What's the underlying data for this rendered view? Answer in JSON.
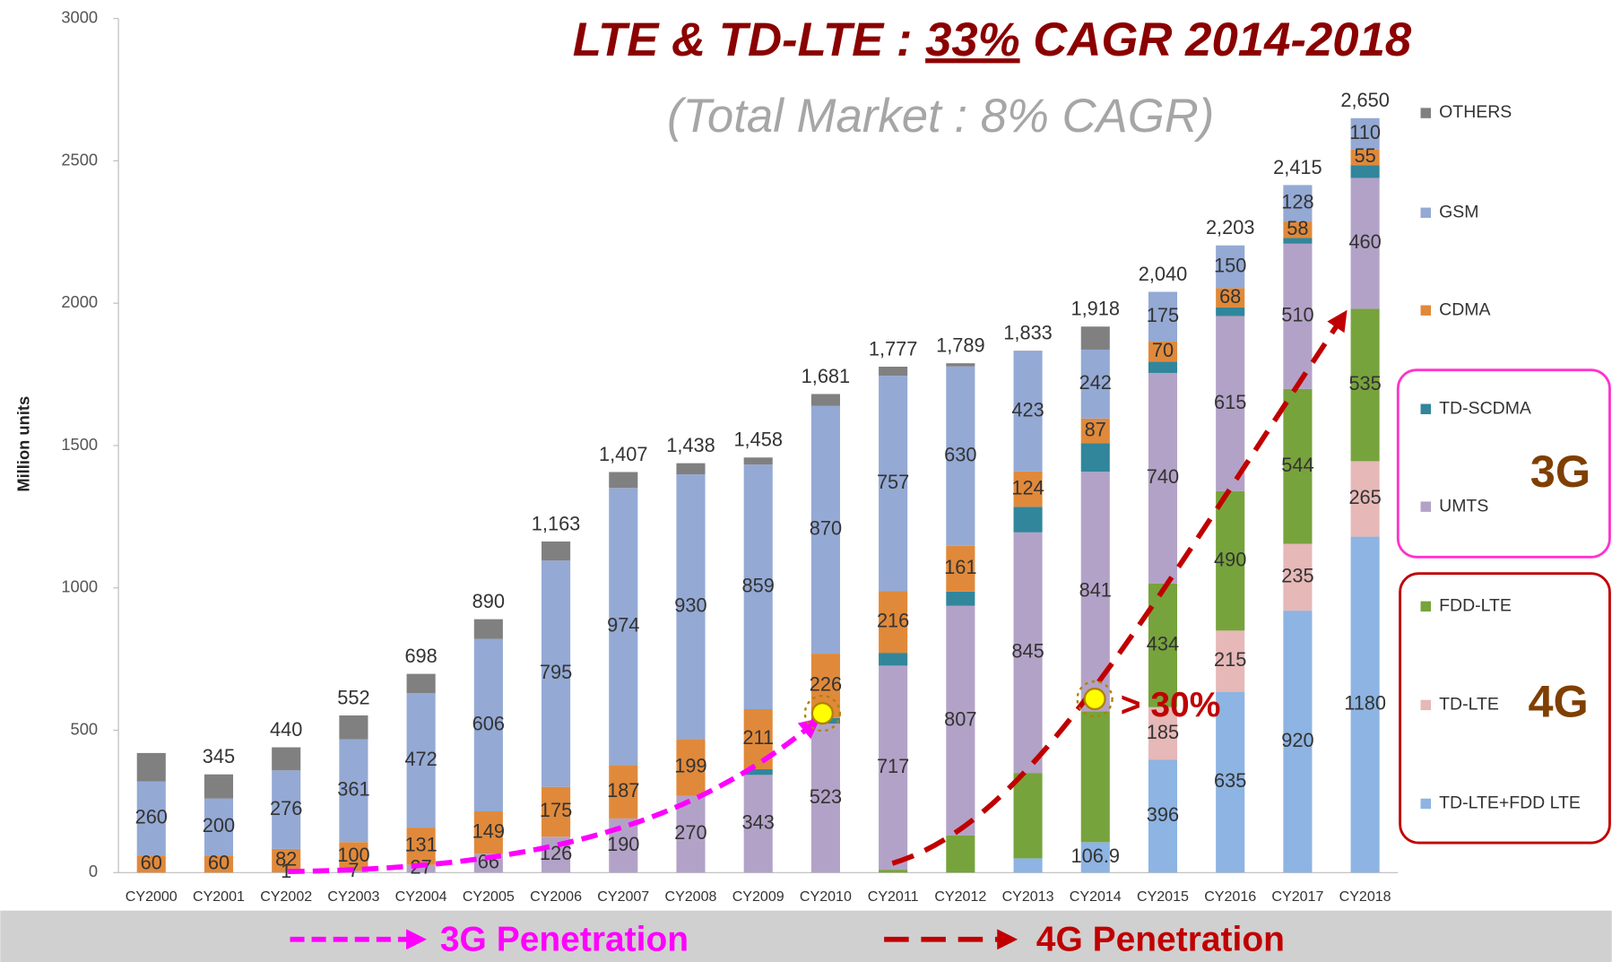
{
  "chart_data": {
    "type": "stacked_bar",
    "title_parts": [
      "LTE & TD-LTE : ",
      "33%",
      " CAGR 2014-2018"
    ],
    "subtitle": "(Total Market : 8% CAGR)",
    "y_label": "Million units",
    "categories": [
      "CY2000",
      "CY2001",
      "CY2002",
      "CY2003",
      "CY2004",
      "CY2005",
      "CY2006",
      "CY2007",
      "CY2008",
      "CY2009",
      "CY2010",
      "CY2011",
      "CY2012",
      "CY2013",
      "CY2014",
      "CY2015",
      "CY2016",
      "CY2017",
      "CY2018"
    ],
    "ylim": [
      0,
      3000
    ],
    "yticks": [
      0,
      500,
      1000,
      1500,
      2000,
      2500,
      3000
    ],
    "series": [
      {
        "name": "TD-LTE+FDD LTE",
        "color": "#8db4e2",
        "values": [
          0,
          0,
          0,
          0,
          0,
          0,
          0,
          0,
          0,
          0,
          0,
          0,
          0,
          50,
          106.9,
          396,
          635,
          920,
          1180
        ],
        "value_labels": [
          null,
          null,
          null,
          null,
          null,
          null,
          null,
          null,
          null,
          null,
          null,
          null,
          null,
          null,
          "106.9",
          "396",
          "635",
          "920",
          "1180"
        ]
      },
      {
        "name": "TD-LTE",
        "color": "#e6b8b7",
        "values": [
          0,
          0,
          0,
          0,
          0,
          0,
          0,
          0,
          0,
          0,
          0,
          0,
          0,
          0,
          0,
          185,
          215,
          235,
          265
        ],
        "value_labels": [
          null,
          null,
          null,
          null,
          null,
          null,
          null,
          null,
          null,
          null,
          null,
          null,
          null,
          null,
          null,
          "185",
          "215",
          "235",
          "265"
        ]
      },
      {
        "name": "FDD-LTE",
        "color": "#77a33c",
        "values": [
          0,
          0,
          0,
          0,
          0,
          0,
          0,
          0,
          0,
          0,
          0,
          10,
          130,
          300,
          460,
          434,
          490,
          544,
          535
        ],
        "value_labels": [
          null,
          null,
          null,
          null,
          null,
          null,
          null,
          null,
          null,
          null,
          null,
          null,
          null,
          null,
          null,
          "434",
          "490",
          "544",
          "535"
        ]
      },
      {
        "name": "UMTS",
        "color": "#b3a2c7",
        "values": [
          0,
          0,
          1,
          7,
          27,
          66,
          126,
          190,
          270,
          343,
          523,
          717,
          807,
          845,
          841,
          740,
          615,
          510,
          460
        ],
        "value_labels": [
          null,
          null,
          "1",
          "7",
          "27",
          "66",
          "126",
          "190",
          "270",
          "343",
          "523",
          "717",
          "807",
          "845",
          "841",
          "740",
          "615",
          "510",
          "460"
        ]
      },
      {
        "name": "TD-SCDMA",
        "color": "#31869b",
        "values": [
          0,
          0,
          0,
          0,
          0,
          0,
          0,
          0,
          0,
          20,
          20,
          45,
          50,
          90,
          100,
          40,
          30,
          20,
          45
        ]
      },
      {
        "name": "CDMA",
        "color": "#e0893a",
        "values": [
          60,
          60,
          82,
          100,
          131,
          149,
          175,
          187,
          199,
          211,
          226,
          216,
          161,
          124,
          87,
          70,
          68,
          58,
          55
        ],
        "value_labels": [
          "60",
          "60",
          "82",
          "100",
          "131",
          "149",
          "175",
          "187",
          "199",
          "211",
          "226",
          "216",
          "161",
          "124",
          "87",
          "70",
          "68",
          "58",
          "55"
        ]
      },
      {
        "name": "GSM",
        "color": "#94a9d4",
        "values": [
          260,
          200,
          276,
          361,
          472,
          606,
          795,
          974,
          930,
          859,
          870,
          757,
          630,
          423,
          242,
          175,
          150,
          128,
          110
        ],
        "value_labels": [
          "260",
          "200",
          "276",
          "361",
          "472",
          "606",
          "795",
          "974",
          "930",
          "859",
          "870",
          "757",
          "630",
          "423",
          "242",
          "175",
          "150",
          "128",
          "110"
        ]
      },
      {
        "name": "OTHERS",
        "color": "#808080",
        "values": [
          100,
          85,
          81,
          84,
          68,
          69,
          67,
          56,
          39,
          25,
          42,
          32,
          11,
          1,
          81,
          0,
          0,
          0,
          0
        ]
      }
    ],
    "totals": [
      null,
      345,
      440,
      552,
      698,
      890,
      1163,
      1407,
      1438,
      1458,
      1681,
      1777,
      1789,
      1833,
      1918,
      2040,
      2203,
      2415,
      2650
    ],
    "total_labels": [
      null,
      "345",
      "440",
      "552",
      "698",
      "890",
      "1,163",
      "1,407",
      "1,438",
      "1,458",
      "1,681",
      "1,777",
      "1,789",
      "1,833",
      "1,918",
      "2,040",
      "2,203",
      "2,415",
      "2,650"
    ],
    "annotations": {
      "g3": "3G",
      "g4": "4G",
      "growth": "> 30%",
      "pen3": "3G Penetration",
      "pen4": "4G Penetration"
    }
  }
}
